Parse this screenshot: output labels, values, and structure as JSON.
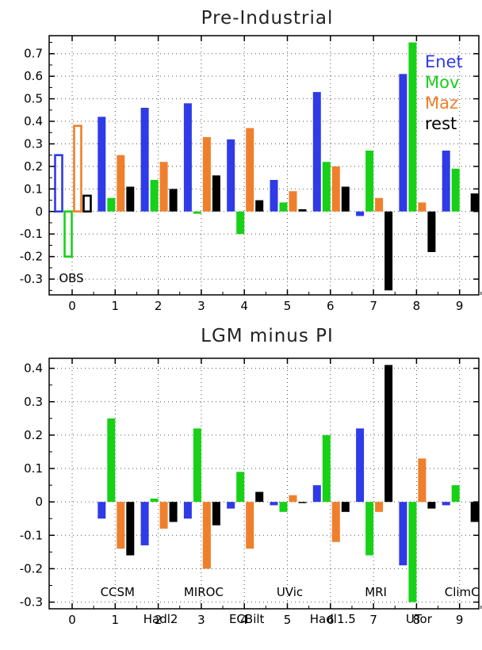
{
  "chart_data": [
    {
      "type": "bar",
      "title": "Pre-Industrial",
      "x": [
        1,
        2,
        3,
        4,
        5,
        6,
        7,
        8,
        9
      ],
      "ylim": [
        -0.37,
        0.78
      ],
      "yticks": [
        -0.3,
        -0.2,
        -0.1,
        0,
        0.1,
        0.2,
        0.3,
        0.4,
        0.5,
        0.6,
        0.7
      ],
      "ytick_labels": [
        "-0.3",
        "-0.2",
        "-0.1",
        "0",
        "0.1",
        "0.2",
        "0.3",
        "0.4",
        "0.5",
        "0.6",
        "0.7"
      ],
      "xticks": [
        "0",
        "1",
        "2",
        "3",
        "4",
        "5",
        "6",
        "7",
        "8",
        "9"
      ],
      "grid": true,
      "legend_position": "top-right",
      "series": [
        {
          "name": "Enet",
          "color": "#2e3be6",
          "values": [
            0.42,
            0.46,
            0.48,
            0.32,
            0.14,
            0.53,
            -0.02,
            0.61,
            0.27
          ]
        },
        {
          "name": "Mov",
          "color": "#17d117",
          "values": [
            0.06,
            0.14,
            -0.01,
            -0.1,
            0.04,
            0.22,
            0.27,
            0.75,
            0.19
          ]
        },
        {
          "name": "Maz",
          "color": "#f07f2c",
          "values": [
            0.25,
            0.22,
            0.33,
            0.37,
            0.09,
            0.2,
            0.06,
            0.04,
            null
          ]
        },
        {
          "name": "rest",
          "color": "#000000",
          "values": [
            0.11,
            0.1,
            0.16,
            0.05,
            0.01,
            0.11,
            -0.35,
            -0.18,
            0.08
          ]
        }
      ],
      "observations": {
        "label": "OBS",
        "values": {
          "Enet": 0.25,
          "Mov": -0.2,
          "Maz": 0.38,
          "rest": 0.07
        }
      }
    },
    {
      "type": "bar",
      "title": "LGM minus PI",
      "x": [
        1,
        2,
        3,
        4,
        5,
        6,
        7,
        8,
        9
      ],
      "ylim": [
        -0.32,
        0.43
      ],
      "yticks": [
        -0.3,
        -0.2,
        -0.1,
        0,
        0.1,
        0.2,
        0.3,
        0.4
      ],
      "ytick_labels": [
        "-0.3",
        "-0.2",
        "-0.1",
        "0",
        "0.1",
        "0.2",
        "0.3",
        "0.4"
      ],
      "xticks": [
        "0",
        "1",
        "2",
        "3",
        "4",
        "5",
        "6",
        "7",
        "8",
        "9"
      ],
      "grid": true,
      "series": [
        {
          "name": "Enet",
          "color": "#2e3be6",
          "values": [
            -0.05,
            -0.13,
            -0.05,
            -0.02,
            -0.01,
            0.05,
            0.22,
            -0.19,
            -0.01
          ]
        },
        {
          "name": "Mov",
          "color": "#17d117",
          "values": [
            0.25,
            0.01,
            0.22,
            0.09,
            -0.03,
            0.2,
            -0.16,
            -0.3,
            0.05
          ]
        },
        {
          "name": "Maz",
          "color": "#f07f2c",
          "values": [
            -0.14,
            -0.08,
            -0.2,
            -0.14,
            0.02,
            -0.12,
            -0.03,
            0.13,
            null
          ]
        },
        {
          "name": "rest",
          "color": "#000000",
          "values": [
            -0.16,
            -0.06,
            -0.07,
            0.03,
            0.0,
            -0.03,
            0.41,
            -0.02,
            -0.06
          ]
        }
      ],
      "models": [
        {
          "x": 1,
          "label": "CCSM",
          "row": 1
        },
        {
          "x": 2,
          "label": "Hadl2",
          "row": 2
        },
        {
          "x": 3,
          "label": "MIROC",
          "row": 1
        },
        {
          "x": 4,
          "label": "ECBilt",
          "row": 2
        },
        {
          "x": 5,
          "label": "UVic",
          "row": 1
        },
        {
          "x": 6,
          "label": "Hadl1.5",
          "row": 2
        },
        {
          "x": 7,
          "label": "MRI",
          "row": 1
        },
        {
          "x": 8,
          "label": "UTor",
          "row": 2
        },
        {
          "x": 9,
          "label": "ClimC",
          "row": 1
        }
      ]
    }
  ]
}
